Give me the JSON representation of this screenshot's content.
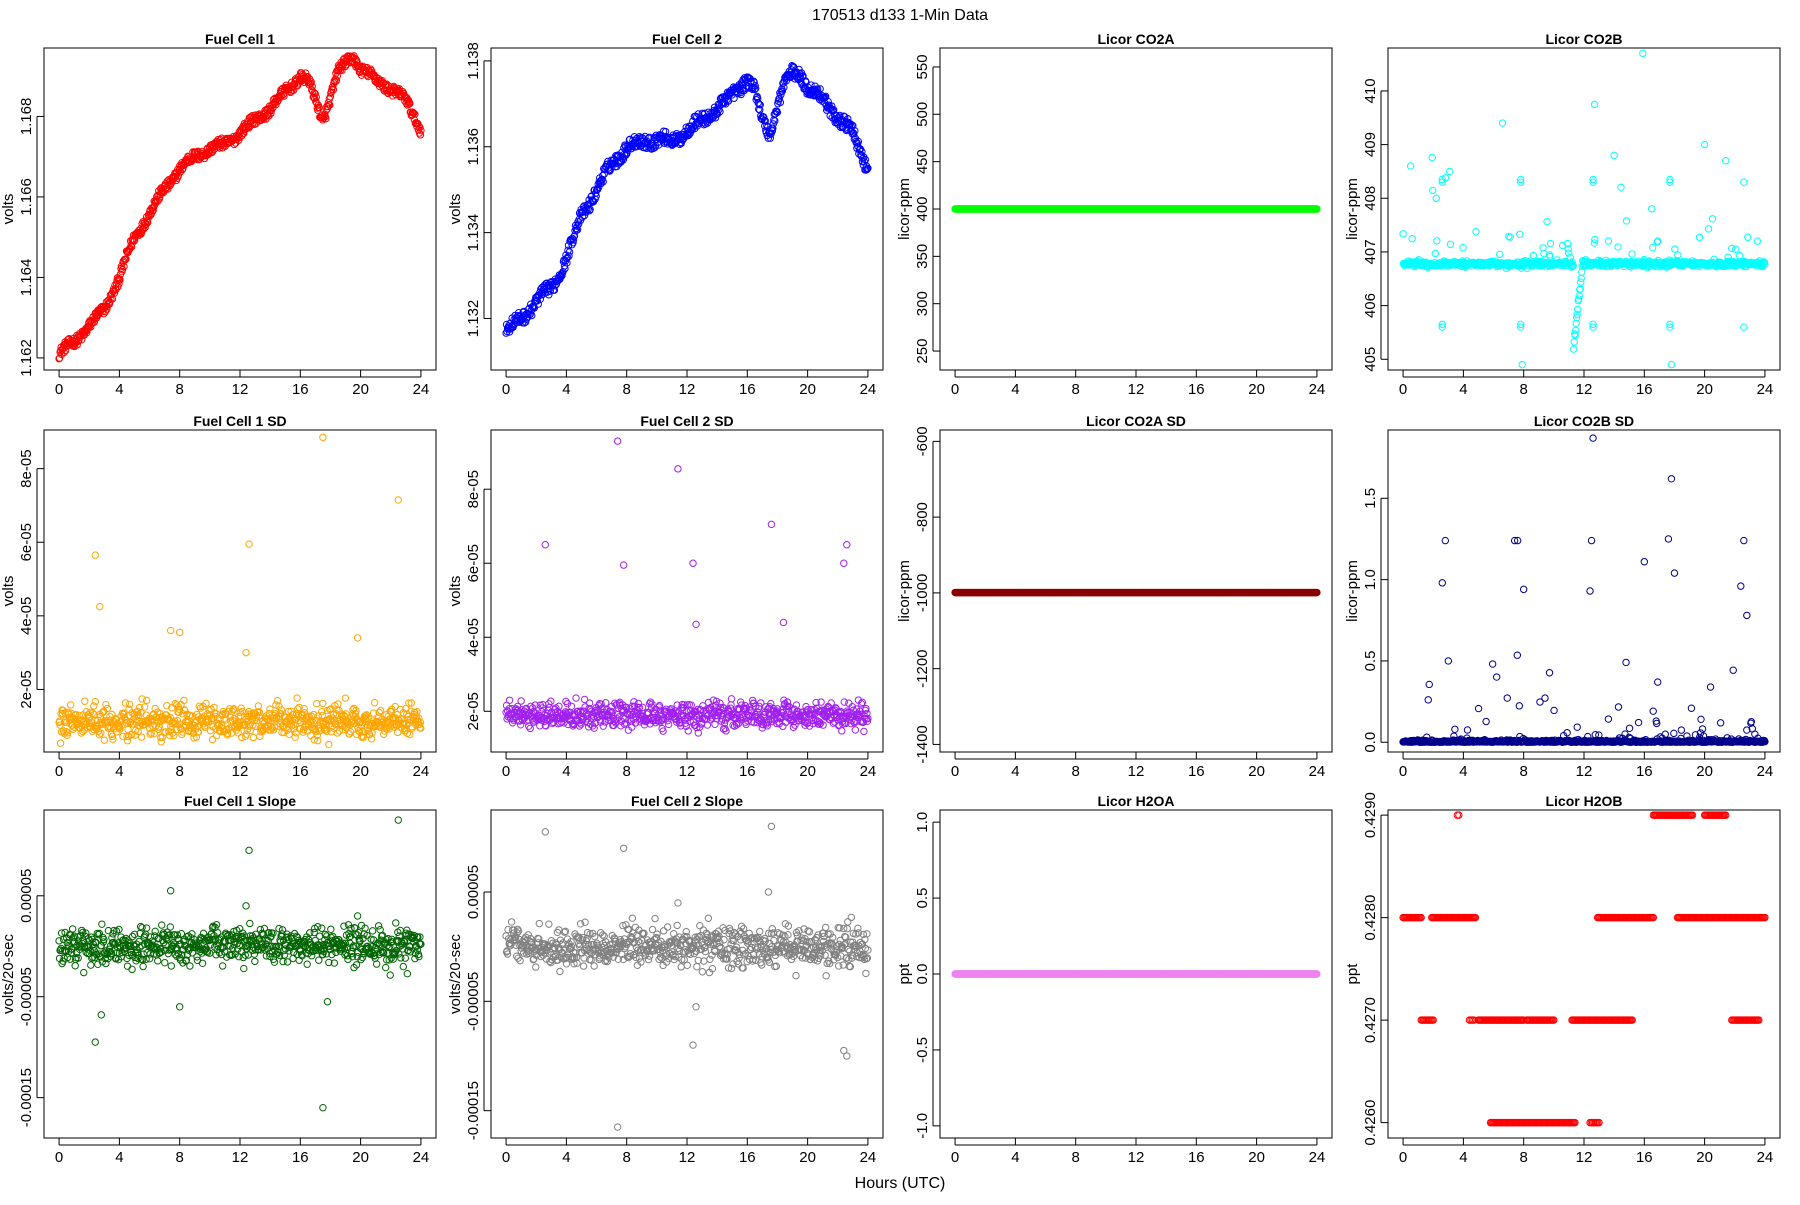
{
  "figure": {
    "title": "170513   d133   1-Min Data",
    "xlabel": "Hours (UTC)"
  },
  "chart_data": [
    {
      "id": "fc1",
      "type": "scatter",
      "title": "Fuel Cell 1",
      "xlabel": "",
      "ylabel": "volts",
      "color": "#ff0000",
      "xlim": [
        -1,
        25
      ],
      "ylim": [
        1.1617,
        1.1697
      ],
      "xticks": [
        0,
        4,
        8,
        12,
        16,
        20,
        24
      ],
      "xtick_labels": [
        "0",
        "4",
        "8",
        "12",
        "16",
        "20",
        "24"
      ],
      "yticks": [
        1.162,
        1.164,
        1.166,
        1.168
      ],
      "ytick_labels": [
        "1.162",
        "1.164",
        "1.166",
        "1.168"
      ],
      "gen": {
        "kind": "curve",
        "pts": [
          [
            0,
            1.1621
          ],
          [
            1,
            1.1624
          ],
          [
            2,
            1.1628
          ],
          [
            3,
            1.1632
          ],
          [
            4,
            1.164
          ],
          [
            5,
            1.165
          ],
          [
            6,
            1.1656
          ],
          [
            7,
            1.1662
          ],
          [
            8,
            1.1667
          ],
          [
            9,
            1.167
          ],
          [
            10,
            1.1672
          ],
          [
            11,
            1.1673
          ],
          [
            12,
            1.1676
          ],
          [
            13,
            1.1679
          ],
          [
            14,
            1.1682
          ],
          [
            15,
            1.1686
          ],
          [
            16,
            1.169
          ],
          [
            16.5,
            1.1689
          ],
          [
            17,
            1.1684
          ],
          [
            17.5,
            1.1679
          ],
          [
            18,
            1.1685
          ],
          [
            18.5,
            1.1691
          ],
          [
            19,
            1.1693
          ],
          [
            19.5,
            1.1695
          ],
          [
            20,
            1.1692
          ],
          [
            21,
            1.1689
          ],
          [
            22,
            1.1687
          ],
          [
            23,
            1.1684
          ],
          [
            24,
            1.1677
          ]
        ],
        "band": 0.00025,
        "n": 720
      }
    },
    {
      "id": "fc2",
      "type": "scatter",
      "title": "Fuel Cell 2",
      "xlabel": "",
      "ylabel": "volts",
      "color": "#0000ff",
      "xlim": [
        -1,
        25
      ],
      "ylim": [
        1.1308,
        1.1383
      ],
      "xticks": [
        0,
        4,
        8,
        12,
        16,
        20,
        24
      ],
      "xtick_labels": [
        "0",
        "4",
        "8",
        "12",
        "16",
        "20",
        "24"
      ],
      "yticks": [
        1.132,
        1.134,
        1.136,
        1.138
      ],
      "ytick_labels": [
        "1.132",
        "1.134",
        "1.136",
        "1.138"
      ],
      "gen": {
        "kind": "curve",
        "pts": [
          [
            0,
            1.1317
          ],
          [
            1,
            1.132
          ],
          [
            2,
            1.1324
          ],
          [
            3,
            1.1327
          ],
          [
            4,
            1.1334
          ],
          [
            5,
            1.1344
          ],
          [
            6,
            1.135
          ],
          [
            7,
            1.1356
          ],
          [
            8,
            1.136
          ],
          [
            9,
            1.1361
          ],
          [
            10,
            1.1362
          ],
          [
            11,
            1.1361
          ],
          [
            12,
            1.1364
          ],
          [
            13,
            1.1366
          ],
          [
            14,
            1.1369
          ],
          [
            15,
            1.1372
          ],
          [
            16,
            1.1376
          ],
          [
            16.5,
            1.1373
          ],
          [
            17,
            1.1366
          ],
          [
            17.5,
            1.1363
          ],
          [
            18,
            1.137
          ],
          [
            18.5,
            1.1375
          ],
          [
            19,
            1.1377
          ],
          [
            19.5,
            1.1377
          ],
          [
            20,
            1.1374
          ],
          [
            21,
            1.1371
          ],
          [
            22,
            1.1367
          ],
          [
            23,
            1.1363
          ],
          [
            24,
            1.1355
          ]
        ],
        "band": 0.0003,
        "n": 720
      }
    },
    {
      "id": "co2a",
      "type": "scatter",
      "title": "Licor CO2A",
      "xlabel": "",
      "ylabel": "licor-ppm",
      "color": "#00ff00",
      "xlim": [
        -1,
        25
      ],
      "ylim": [
        230,
        570
      ],
      "xticks": [
        0,
        4,
        8,
        12,
        16,
        20,
        24
      ],
      "xtick_labels": [
        "0",
        "4",
        "8",
        "12",
        "16",
        "20",
        "24"
      ],
      "yticks": [
        250,
        300,
        350,
        400,
        450,
        500,
        550
      ],
      "ytick_labels": [
        "250",
        "300",
        "350",
        "400",
        "450",
        "500",
        "550"
      ],
      "gen": {
        "kind": "flat",
        "value": 400,
        "n": 720
      }
    },
    {
      "id": "co2b",
      "type": "scatter",
      "title": "Licor CO2B",
      "xlabel": "",
      "ylabel": "licor-ppm",
      "color": "#00ffff",
      "xlim": [
        -1,
        25
      ],
      "ylim": [
        404.8,
        410.8
      ],
      "xticks": [
        0,
        4,
        8,
        12,
        16,
        20,
        24
      ],
      "xtick_labels": [
        "0",
        "4",
        "8",
        "12",
        "16",
        "20",
        "24"
      ],
      "yticks": [
        405,
        406,
        407,
        408,
        409,
        410
      ],
      "ytick_labels": [
        "405",
        "406",
        "407",
        "408",
        "409",
        "410"
      ],
      "gen": {
        "kind": "co2b",
        "n": 720
      }
    },
    {
      "id": "fc1sd",
      "type": "scatter",
      "title": "Fuel Cell 1 SD",
      "xlabel": "",
      "ylabel": "volts",
      "color": "#ffa500",
      "xlim": [
        -1,
        25
      ],
      "ylim": [
        3e-06,
        9.05e-05
      ],
      "xticks": [
        0,
        4,
        8,
        12,
        16,
        20,
        24
      ],
      "xtick_labels": [
        "0",
        "4",
        "8",
        "12",
        "16",
        "20",
        "24"
      ],
      "yticks": [
        2e-05,
        4e-05,
        6e-05,
        8e-05
      ],
      "ytick_labels": [
        "2e-05",
        "4e-05",
        "6e-05",
        "8e-05"
      ],
      "gen": {
        "kind": "noise",
        "base": 1.05e-05,
        "spread": 4.5e-06,
        "n": 720,
        "out": [
          [
            2.4,
            5.65e-05
          ],
          [
            2.7,
            4.25e-05
          ],
          [
            7.4,
            3.6e-05
          ],
          [
            8.0,
            3.55e-05
          ],
          [
            12.6,
            5.95e-05
          ],
          [
            17.5,
            8.85e-05
          ],
          [
            22.5,
            7.15e-05
          ],
          [
            12.4,
            3e-05
          ],
          [
            19.8,
            3.4e-05
          ]
        ]
      }
    },
    {
      "id": "fc2sd",
      "type": "scatter",
      "title": "Fuel Cell 2 SD",
      "xlabel": "",
      "ylabel": "volts",
      "color": "#a020f0",
      "xlim": [
        -1,
        25
      ],
      "ylim": [
        9e-06,
        9.6e-05
      ],
      "xticks": [
        0,
        4,
        8,
        12,
        16,
        20,
        24
      ],
      "xtick_labels": [
        "0",
        "4",
        "8",
        "12",
        "16",
        "20",
        "24"
      ],
      "yticks": [
        2e-05,
        4e-05,
        6e-05,
        8e-05
      ],
      "ytick_labels": [
        "2e-05",
        "4e-05",
        "6e-05",
        "8e-05"
      ],
      "gen": {
        "kind": "noise",
        "base": 1.85e-05,
        "spread": 3.5e-06,
        "n": 720,
        "out": [
          [
            2.6,
            6.5e-05
          ],
          [
            7.4,
            9.3e-05
          ],
          [
            7.8,
            5.95e-05
          ],
          [
            11.4,
            8.55e-05
          ],
          [
            12.4,
            6e-05
          ],
          [
            12.6,
            4.35e-05
          ],
          [
            17.6,
            7.05e-05
          ],
          [
            18.4,
            4.4e-05
          ],
          [
            22.4,
            6e-05
          ],
          [
            22.6,
            6.5e-05
          ]
        ]
      }
    },
    {
      "id": "co2asd",
      "type": "scatter",
      "title": "Licor CO2A SD",
      "xlabel": "",
      "ylabel": "licor-ppm",
      "color": "#8b0000",
      "xlim": [
        -1,
        25
      ],
      "ylim": [
        -1420,
        -570
      ],
      "xticks": [
        0,
        4,
        8,
        12,
        16,
        20,
        24
      ],
      "xtick_labels": [
        "0",
        "4",
        "8",
        "12",
        "16",
        "20",
        "24"
      ],
      "yticks": [
        -1400,
        -1200,
        -1000,
        -800,
        -600
      ],
      "ytick_labels": [
        "-1400",
        "-1200",
        "-1000",
        "-800",
        "-600"
      ],
      "gen": {
        "kind": "flat",
        "value": -999,
        "n": 720
      }
    },
    {
      "id": "co2bsd",
      "type": "scatter",
      "title": "Licor CO2B SD",
      "xlabel": "",
      "ylabel": "licor-ppm",
      "color": "#00008b",
      "xlim": [
        -1,
        25
      ],
      "ylim": [
        -0.06,
        1.92
      ],
      "xticks": [
        0,
        4,
        8,
        12,
        16,
        20,
        24
      ],
      "xtick_labels": [
        "0",
        "4",
        "8",
        "12",
        "16",
        "20",
        "24"
      ],
      "yticks": [
        0,
        0.5,
        1,
        1.5
      ],
      "ytick_labels": [
        "0.0",
        "0.5",
        "1.0",
        "1.5"
      ],
      "gen": {
        "kind": "co2bsd",
        "n": 720,
        "out": [
          [
            2.6,
            0.98
          ],
          [
            2.8,
            1.24
          ],
          [
            3.0,
            0.5
          ],
          [
            7.4,
            1.24
          ],
          [
            7.6,
            1.24
          ],
          [
            8.0,
            0.94
          ],
          [
            12.6,
            1.87
          ],
          [
            12.5,
            1.24
          ],
          [
            12.4,
            0.93
          ],
          [
            16.0,
            1.11
          ],
          [
            17.6,
            1.25
          ],
          [
            17.8,
            1.62
          ],
          [
            18.0,
            1.04
          ],
          [
            22.6,
            1.24
          ],
          [
            22.4,
            0.96
          ],
          [
            22.8,
            0.78
          ]
        ]
      }
    },
    {
      "id": "fc1slope",
      "type": "scatter",
      "title": "Fuel Cell 1 Slope",
      "xlabel": "",
      "ylabel": "volts/20-sec",
      "color": "#006400",
      "xlim": [
        -1,
        25
      ],
      "ylim": [
        -0.00019,
        0.000135
      ],
      "xticks": [
        0,
        4,
        8,
        12,
        16,
        20,
        24
      ],
      "xtick_labels": [
        "0",
        "4",
        "8",
        "12",
        "16",
        "20",
        "24"
      ],
      "yticks": [
        -0.00015,
        -5e-05,
        5e-05
      ],
      "ytick_labels": [
        "-0.00015",
        "-0.00005",
        "0.00005"
      ],
      "gen": {
        "kind": "noise",
        "base": 0.0,
        "spread": 1.3e-05,
        "n": 720,
        "out": [
          [
            2.4,
            -9.5e-05
          ],
          [
            2.8,
            -6.8e-05
          ],
          [
            7.4,
            5.5e-05
          ],
          [
            8.0,
            -6e-05
          ],
          [
            12.6,
            9.5e-05
          ],
          [
            17.5,
            -0.00016
          ],
          [
            17.8,
            -5.5e-05
          ],
          [
            22.5,
            0.000125
          ],
          [
            12.4,
            4e-05
          ],
          [
            19.8,
            3e-05
          ]
        ]
      }
    },
    {
      "id": "fc2slope",
      "type": "scatter",
      "title": "Fuel Cell 2 Slope",
      "xlabel": "",
      "ylabel": "volts/20-sec",
      "color": "#808080",
      "xlim": [
        -1,
        25
      ],
      "ylim": [
        -0.000175,
        0.000125
      ],
      "xticks": [
        0,
        4,
        8,
        12,
        16,
        20,
        24
      ],
      "xtick_labels": [
        "0",
        "4",
        "8",
        "12",
        "16",
        "20",
        "24"
      ],
      "yticks": [
        -0.00015,
        -5e-05,
        5e-05
      ],
      "ytick_labels": [
        "-0.00015",
        "-0.00005",
        "0.00005"
      ],
      "gen": {
        "kind": "noise",
        "base": 0.0,
        "spread": 1.3e-05,
        "n": 720,
        "out": [
          [
            2.6,
            0.000105
          ],
          [
            7.4,
            -0.000165
          ],
          [
            7.8,
            9e-05
          ],
          [
            12.4,
            -9e-05
          ],
          [
            12.6,
            -5.5e-05
          ],
          [
            17.6,
            0.00011
          ],
          [
            17.4,
            5e-05
          ],
          [
            22.4,
            -9.5e-05
          ],
          [
            22.6,
            -0.0001
          ],
          [
            11.4,
            4e-05
          ]
        ]
      }
    },
    {
      "id": "h2oa",
      "type": "scatter",
      "title": "Licor H2OA",
      "xlabel": "",
      "ylabel": "ppt",
      "color": "#ee82ee",
      "xlim": [
        -1,
        25
      ],
      "ylim": [
        -1.08,
        1.08
      ],
      "xticks": [
        0,
        4,
        8,
        12,
        16,
        20,
        24
      ],
      "xtick_labels": [
        "0",
        "4",
        "8",
        "12",
        "16",
        "20",
        "24"
      ],
      "yticks": [
        -1,
        -0.5,
        0,
        0.5,
        1
      ],
      "ytick_labels": [
        "-1.0",
        "-0.5",
        "0.0",
        "0.5",
        "1.0"
      ],
      "gen": {
        "kind": "flat",
        "value": 0.0,
        "n": 720
      }
    },
    {
      "id": "h2ob",
      "type": "scatter",
      "title": "Licor H2OB",
      "xlabel": "",
      "ylabel": "ppt",
      "color": "#ff0000",
      "xlim": [
        -1,
        25
      ],
      "ylim": [
        0.42585,
        0.42905
      ],
      "xticks": [
        0,
        4,
        8,
        12,
        16,
        20,
        24
      ],
      "xtick_labels": [
        "0",
        "4",
        "8",
        "12",
        "16",
        "20",
        "24"
      ],
      "yticks": [
        0.426,
        0.427,
        0.428,
        0.429
      ],
      "ytick_labels": [
        "0.4260",
        "0.4270",
        "0.4280",
        "0.4290"
      ],
      "gen": {
        "kind": "h2ob",
        "segments": [
          [
            0,
            1.2,
            0.428
          ],
          [
            1.2,
            2.0,
            0.427
          ],
          [
            1.9,
            4.8,
            0.428
          ],
          [
            4.4,
            4.7,
            0.427
          ],
          [
            3.6,
            3.7,
            0.429
          ],
          [
            5.0,
            8.0,
            0.427
          ],
          [
            5.8,
            11.4,
            0.426
          ],
          [
            8.2,
            10.0,
            0.427
          ],
          [
            11.2,
            15.2,
            0.427
          ],
          [
            12.4,
            13.0,
            0.426
          ],
          [
            12.9,
            15.0,
            0.428
          ],
          [
            15.0,
            16.6,
            0.428
          ],
          [
            16.6,
            19.2,
            0.429
          ],
          [
            18.2,
            24.0,
            0.428
          ],
          [
            20.0,
            21.4,
            0.429
          ],
          [
            21.8,
            23.6,
            0.427
          ]
        ],
        "n": 720
      }
    }
  ]
}
